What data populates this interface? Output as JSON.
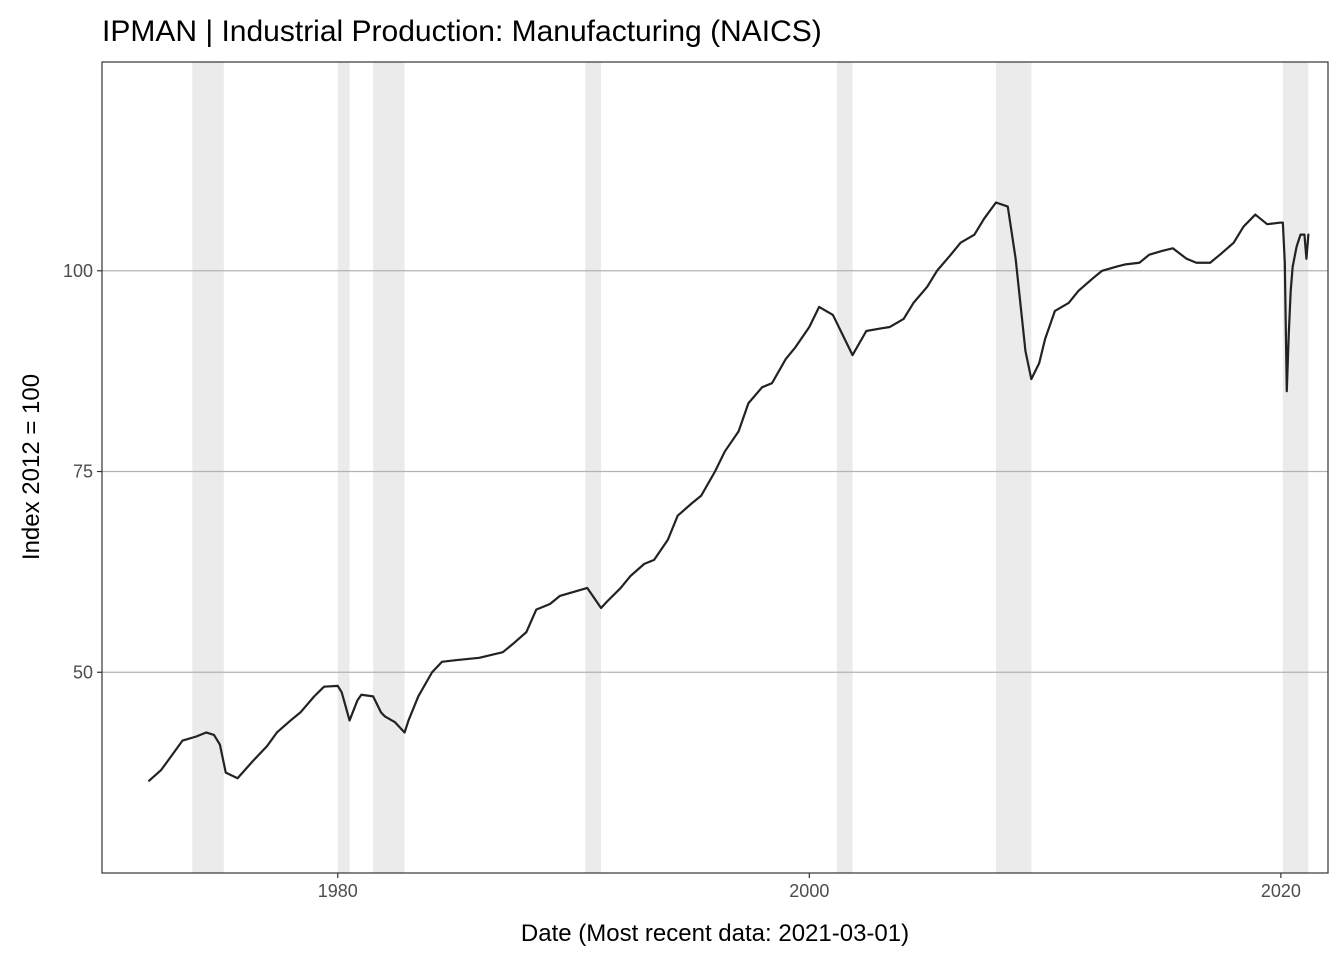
{
  "chart_data": {
    "type": "line",
    "title": "IPMAN | Industrial Production: Manufacturing (NAICS)",
    "xlabel": "Date (Most recent data: 2021-03-01)",
    "ylabel": "Index 2012 = 100",
    "xlim": [
      "1970-01-01",
      "2021-12-31"
    ],
    "ylim": [
      25,
      126
    ],
    "x_ticks": [
      "1980",
      "2000",
      "2020"
    ],
    "y_ticks": [
      50,
      75,
      100
    ],
    "grid": "horizontal major lines",
    "recession_shading_color": "#ebebeb",
    "line_color": "#222222",
    "recessions": [
      {
        "start": "1973-11-01",
        "end": "1975-03-01"
      },
      {
        "start": "1980-01-01",
        "end": "1980-07-01"
      },
      {
        "start": "1981-07-01",
        "end": "1982-11-01"
      },
      {
        "start": "1990-07-01",
        "end": "1991-03-01"
      },
      {
        "start": "2001-03-01",
        "end": "2001-11-01"
      },
      {
        "start": "2007-12-01",
        "end": "2009-06-01"
      },
      {
        "start": "2020-02-01",
        "end": "2021-03-01"
      }
    ],
    "series": [
      {
        "x": [
          "1972-01-01",
          "1972-07-01",
          "1973-01-01",
          "1973-06-01",
          "1974-01-01",
          "1974-06-01",
          "1974-10-01",
          "1975-01-01",
          "1975-04-01",
          "1975-10-01",
          "1976-06-01",
          "1977-01-01",
          "1977-06-01",
          "1978-01-01",
          "1978-06-01",
          "1979-01-01",
          "1979-06-01",
          "1980-01-01",
          "1980-03-01",
          "1980-07-01",
          "1980-11-01",
          "1981-01-01",
          "1981-07-01",
          "1981-11-01",
          "1982-01-01",
          "1982-06-01",
          "1982-11-01",
          "1983-01-01",
          "1983-06-01",
          "1984-01-01",
          "1984-06-01",
          "1985-01-01",
          "1986-01-01",
          "1987-01-01",
          "1987-06-01",
          "1988-01-01",
          "1988-06-01",
          "1989-01-01",
          "1989-06-01",
          "1990-01-01",
          "1990-08-01",
          "1991-03-01",
          "1991-06-01",
          "1992-01-01",
          "1992-06-01",
          "1993-01-01",
          "1993-06-01",
          "1994-01-01",
          "1994-06-01",
          "1995-01-01",
          "1995-06-01",
          "1996-01-01",
          "1996-06-01",
          "1997-01-01",
          "1997-06-01",
          "1998-01-01",
          "1998-06-01",
          "1999-01-01",
          "1999-06-01",
          "2000-01-01",
          "2000-06-01",
          "2001-01-01",
          "2001-06-01",
          "2001-11-01",
          "2002-06-01",
          "2003-01-01",
          "2003-06-01",
          "2004-01-01",
          "2004-06-01",
          "2005-01-01",
          "2005-06-01",
          "2006-01-01",
          "2006-06-01",
          "2007-01-01",
          "2007-06-01",
          "2007-12-01",
          "2008-06-01",
          "2008-10-01",
          "2009-03-01",
          "2009-06-01",
          "2009-10-01",
          "2010-01-01",
          "2010-06-01",
          "2011-01-01",
          "2011-06-01",
          "2012-01-01",
          "2012-06-01",
          "2013-01-01",
          "2013-06-01",
          "2014-01-01",
          "2014-06-01",
          "2015-01-01",
          "2015-06-01",
          "2016-01-01",
          "2016-06-01",
          "2017-01-01",
          "2017-06-01",
          "2018-01-01",
          "2018-06-01",
          "2018-12-01",
          "2019-06-01",
          "2020-01-01",
          "2020-02-01",
          "2020-03-01",
          "2020-04-01",
          "2020-05-01",
          "2020-06-01",
          "2020-07-01",
          "2020-09-01",
          "2020-11-01",
          "2021-01-01",
          "2021-02-01",
          "2021-03-01"
        ],
        "values": [
          36.5,
          37.8,
          39.8,
          41.5,
          42.0,
          42.5,
          42.2,
          41.0,
          37.5,
          36.8,
          39.0,
          40.8,
          42.5,
          44.0,
          45.0,
          47.0,
          48.2,
          48.3,
          47.5,
          44.0,
          46.5,
          47.2,
          47.0,
          45.0,
          44.5,
          43.8,
          42.5,
          44.0,
          47.0,
          50.0,
          51.3,
          51.5,
          51.8,
          52.5,
          53.5,
          55.0,
          57.8,
          58.5,
          59.5,
          60.0,
          60.5,
          58.0,
          58.8,
          60.5,
          62.0,
          63.5,
          64.0,
          66.5,
          69.5,
          71.0,
          72.0,
          75.0,
          77.5,
          80.0,
          83.5,
          85.5,
          86.0,
          89.0,
          90.5,
          93.0,
          95.5,
          94.5,
          92.0,
          89.5,
          92.5,
          92.8,
          93.0,
          94.0,
          96.0,
          98.0,
          100.0,
          102.0,
          103.5,
          104.5,
          106.5,
          108.5,
          108.0,
          101.5,
          90.0,
          86.5,
          88.5,
          91.5,
          95.0,
          96.0,
          97.5,
          99.0,
          100.0,
          100.5,
          100.8,
          101.0,
          102.0,
          102.5,
          102.8,
          101.5,
          101.0,
          101.0,
          102.0,
          103.5,
          105.5,
          107.0,
          105.8,
          106.0,
          106.0,
          101.0,
          85.0,
          92.0,
          97.5,
          100.5,
          103.0,
          104.5,
          104.5,
          101.5,
          104.5
        ]
      }
    ]
  }
}
